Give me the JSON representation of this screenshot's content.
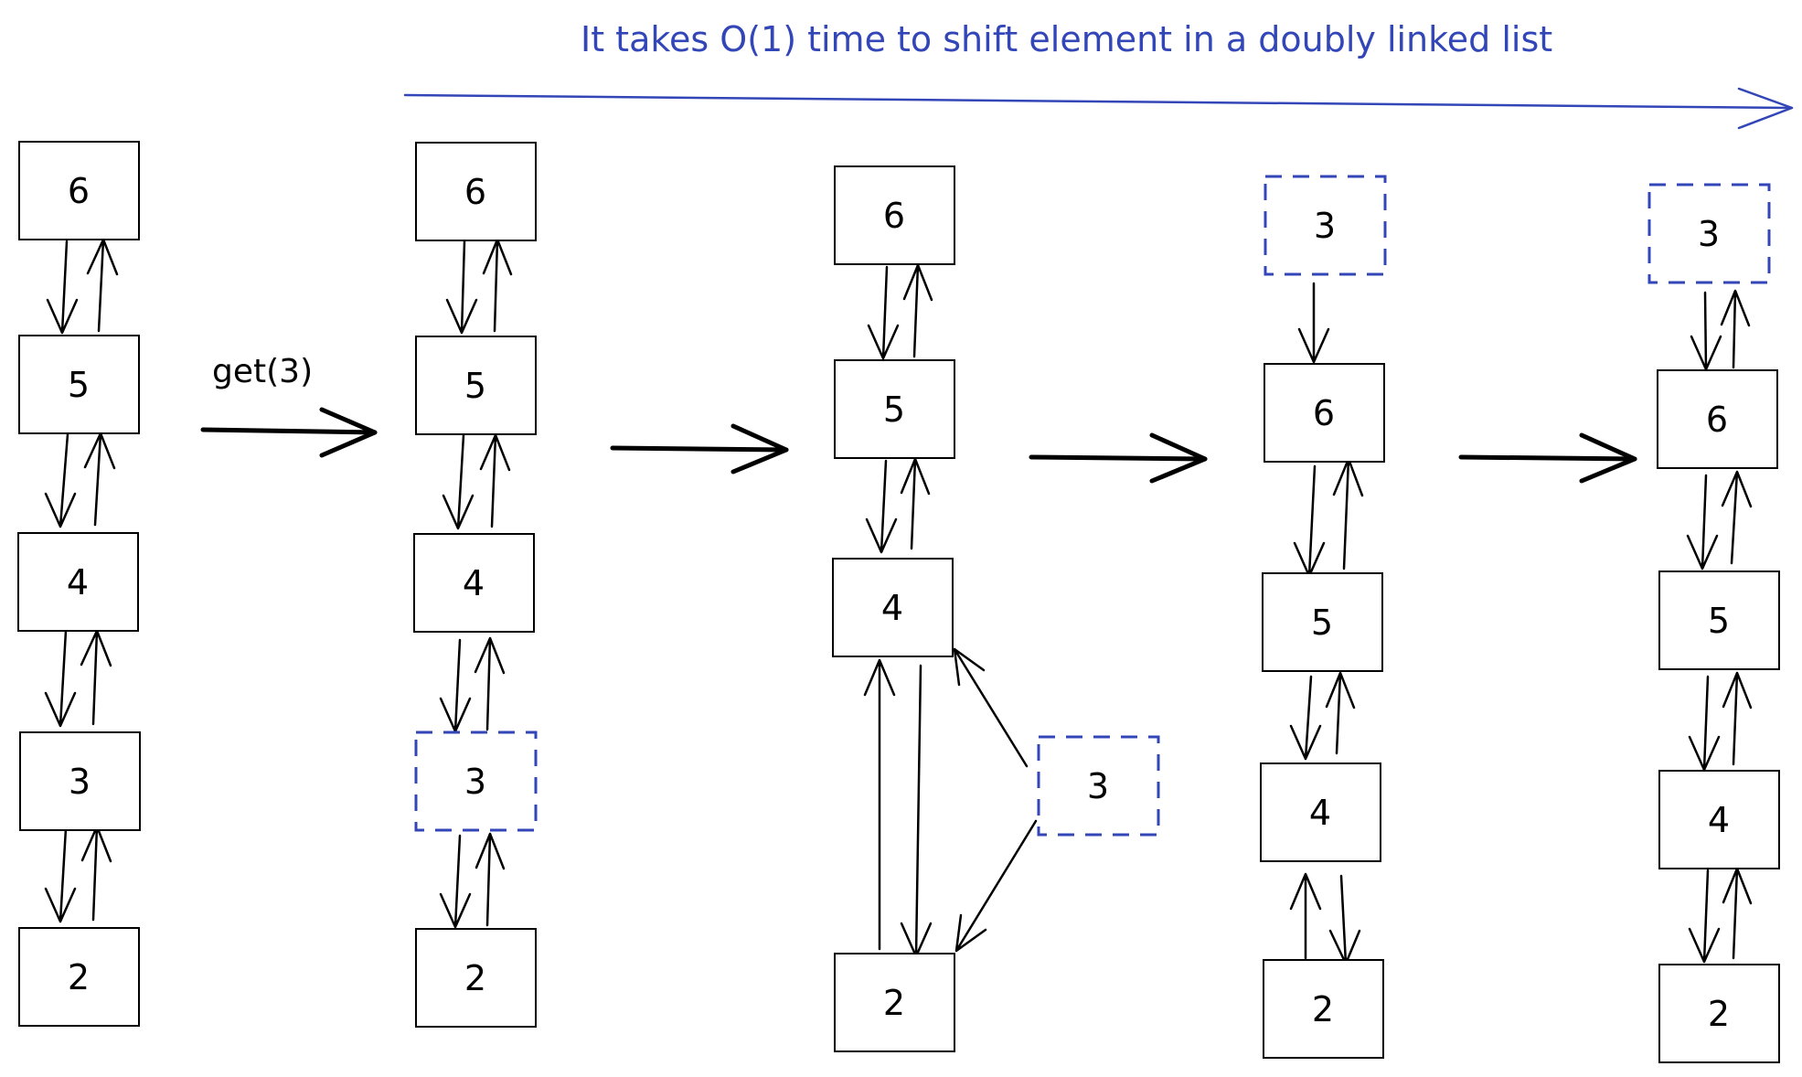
{
  "banner": {
    "text": "It takes O(1) time to shift element in a doubly linked list",
    "color": "#3346b8"
  },
  "operation": {
    "label": "get(3)"
  },
  "highlight_color": "#3346b8",
  "stages": [
    {
      "nodes": [
        {
          "value": "6"
        },
        {
          "value": "5"
        },
        {
          "value": "4"
        },
        {
          "value": "3"
        },
        {
          "value": "2"
        }
      ]
    },
    {
      "nodes": [
        {
          "value": "6"
        },
        {
          "value": "5"
        },
        {
          "value": "4"
        },
        {
          "value": "3",
          "highlighted": true
        },
        {
          "value": "2"
        }
      ]
    },
    {
      "nodes": [
        {
          "value": "6"
        },
        {
          "value": "5"
        },
        {
          "value": "4"
        },
        {
          "value": "2"
        },
        {
          "value": "3",
          "highlighted": true
        }
      ]
    },
    {
      "nodes": [
        {
          "value": "3",
          "highlighted": true
        },
        {
          "value": "6"
        },
        {
          "value": "5"
        },
        {
          "value": "4"
        },
        {
          "value": "2"
        }
      ]
    },
    {
      "nodes": [
        {
          "value": "3",
          "highlighted": true
        },
        {
          "value": "6"
        },
        {
          "value": "5"
        },
        {
          "value": "4"
        },
        {
          "value": "2"
        }
      ]
    }
  ]
}
